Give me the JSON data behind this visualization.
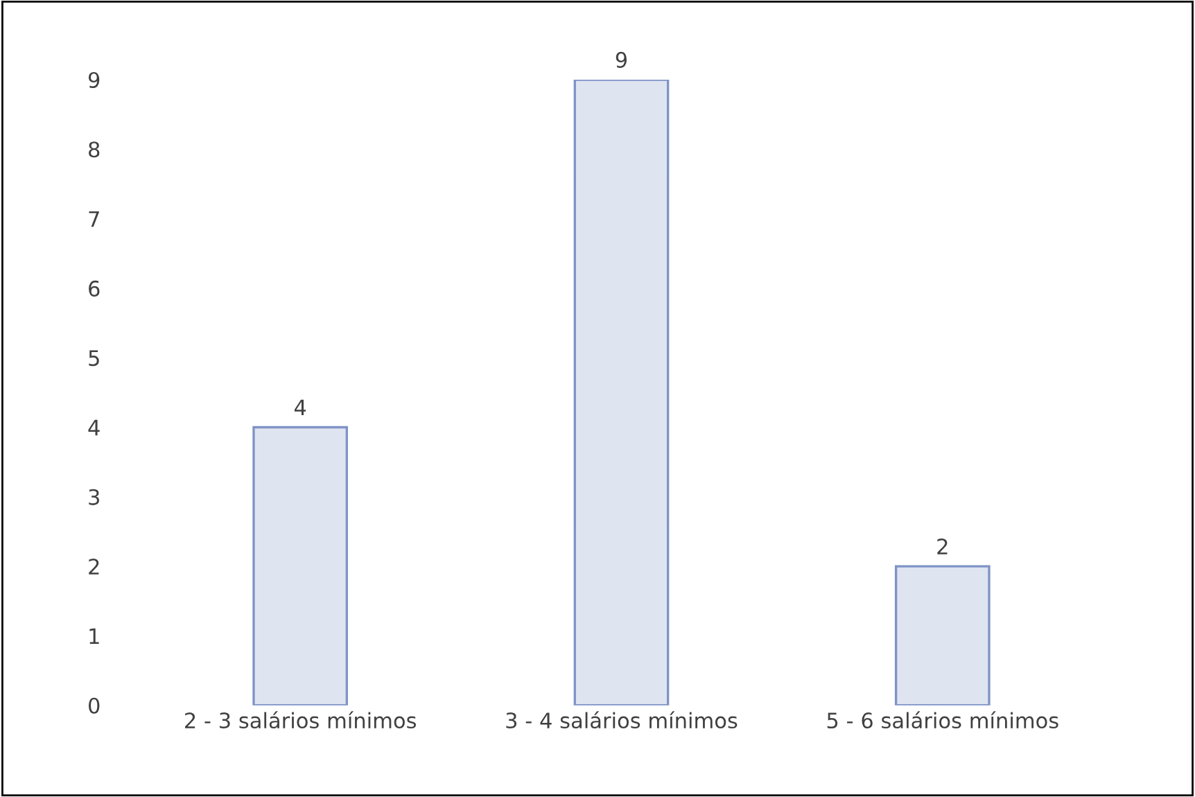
{
  "chart_data": {
    "type": "bar",
    "categories": [
      "2 - 3 salários mínimos",
      "3 - 4 salários mínimos",
      "5 - 6 salários mínimos"
    ],
    "values": [
      4,
      9,
      2
    ],
    "color": "#7f93c6",
    "ylim": [
      0,
      9
    ],
    "yticks": [
      0,
      1,
      2,
      3,
      4,
      5,
      6,
      7,
      8,
      9
    ],
    "data_labels": true,
    "grid": false,
    "legend": false
  }
}
